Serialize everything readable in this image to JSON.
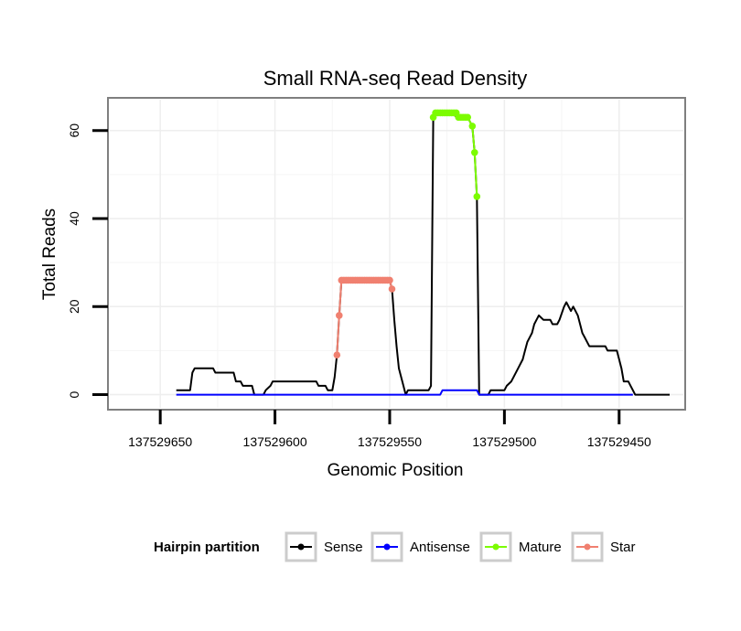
{
  "chart_data": {
    "type": "line",
    "title": "Small RNA-seq Read Density",
    "xlabel": "Genomic Position",
    "ylabel": "Total Reads",
    "xlim": [
      137529672,
      137529422
    ],
    "ylim": [
      -3,
      67
    ],
    "x_reversed": true,
    "grid": true,
    "x_ticks": [
      137529650,
      137529600,
      137529550,
      137529500,
      137529450
    ],
    "x_tick_labels": [
      "137529650",
      "137529600",
      "137529550",
      "137529500",
      "137529450"
    ],
    "y_ticks": [
      0,
      20,
      40,
      60
    ],
    "y_tick_labels": [
      "0",
      "20",
      "40",
      "60"
    ],
    "legend": {
      "title": "Hairpin partition",
      "position": "bottom",
      "entries": [
        "Sense",
        "Antisense",
        "Mature",
        "Star"
      ]
    },
    "series": [
      {
        "name": "Sense",
        "color": "#000000",
        "points": [
          [
            137529643,
            1
          ],
          [
            137529637,
            1
          ],
          [
            137529636,
            5
          ],
          [
            137529635,
            6
          ],
          [
            137529631,
            6
          ],
          [
            137529627,
            6
          ],
          [
            137529626,
            5
          ],
          [
            137529622,
            5
          ],
          [
            137529618,
            5
          ],
          [
            137529617,
            3
          ],
          [
            137529615,
            3
          ],
          [
            137529614,
            2
          ],
          [
            137529610,
            2
          ],
          [
            137529609,
            0
          ],
          [
            137529605,
            0
          ],
          [
            137529604,
            1
          ],
          [
            137529602,
            2
          ],
          [
            137529601,
            3
          ],
          [
            137529596,
            3
          ],
          [
            137529590,
            3
          ],
          [
            137529584,
            3
          ],
          [
            137529582,
            3
          ],
          [
            137529581,
            2
          ],
          [
            137529578,
            2
          ],
          [
            137529577,
            1
          ],
          [
            137529575,
            1
          ],
          [
            137529574,
            4
          ],
          [
            137529573,
            9
          ],
          [
            137529572,
            18
          ],
          [
            137529571,
            26
          ],
          [
            137529570,
            26
          ],
          [
            137529560,
            26
          ],
          [
            137529550,
            26
          ],
          [
            137529549,
            24
          ],
          [
            137529548,
            17
          ],
          [
            137529547,
            11
          ],
          [
            137529546,
            6
          ],
          [
            137529544,
            2
          ],
          [
            137529543,
            0
          ],
          [
            137529542,
            1
          ],
          [
            137529540,
            1
          ],
          [
            137529536,
            1
          ],
          [
            137529533,
            1
          ],
          [
            137529532,
            2
          ],
          [
            137529531,
            63
          ],
          [
            137529530,
            64
          ],
          [
            137529527,
            64
          ],
          [
            137529524,
            64
          ],
          [
            137529520,
            63
          ],
          [
            137529516,
            63
          ],
          [
            137529514,
            61
          ],
          [
            137529513,
            55
          ],
          [
            137529512,
            45
          ],
          [
            137529511,
            0
          ],
          [
            137529509,
            0
          ],
          [
            137529507,
            0
          ],
          [
            137529506,
            1
          ],
          [
            137529500,
            1
          ],
          [
            137529499,
            2
          ],
          [
            137529497,
            3
          ],
          [
            137529496,
            4
          ],
          [
            137529494,
            6
          ],
          [
            137529492,
            8
          ],
          [
            137529491,
            10
          ],
          [
            137529490,
            12
          ],
          [
            137529488,
            14
          ],
          [
            137529487,
            16
          ],
          [
            137529486,
            17
          ],
          [
            137529485,
            18
          ],
          [
            137529483,
            17
          ],
          [
            137529482,
            17
          ],
          [
            137529480,
            17
          ],
          [
            137529479,
            16
          ],
          [
            137529477,
            16
          ],
          [
            137529476,
            17
          ],
          [
            137529474,
            20
          ],
          [
            137529473,
            21
          ],
          [
            137529472,
            20
          ],
          [
            137529471,
            19
          ],
          [
            137529470,
            20
          ],
          [
            137529469,
            19
          ],
          [
            137529468,
            18
          ],
          [
            137529467,
            16
          ],
          [
            137529466,
            14
          ],
          [
            137529465,
            13
          ],
          [
            137529464,
            12
          ],
          [
            137529463,
            11
          ],
          [
            137529460,
            11
          ],
          [
            137529456,
            11
          ],
          [
            137529455,
            10
          ],
          [
            137529451,
            10
          ],
          [
            137529450,
            8
          ],
          [
            137529449,
            6
          ],
          [
            137529448,
            3
          ],
          [
            137529446,
            3
          ],
          [
            137529445,
            2
          ],
          [
            137529444,
            1
          ],
          [
            137529443,
            0
          ],
          [
            137529441,
            0
          ],
          [
            137529434,
            0
          ],
          [
            137529428,
            0
          ]
        ]
      },
      {
        "name": "Antisense",
        "color": "#0000ff",
        "points": [
          [
            137529643,
            0
          ],
          [
            137529620,
            0
          ],
          [
            137529600,
            0
          ],
          [
            137529580,
            0
          ],
          [
            137529560,
            0
          ],
          [
            137529540,
            0
          ],
          [
            137529528,
            0
          ],
          [
            137529527,
            1
          ],
          [
            137529520,
            1
          ],
          [
            137529512,
            1
          ],
          [
            137529511,
            0
          ],
          [
            137529500,
            0
          ],
          [
            137529480,
            0
          ],
          [
            137529460,
            0
          ],
          [
            137529444,
            0
          ]
        ]
      },
      {
        "name": "Mature",
        "color": "#7cfc00",
        "points": [
          [
            137529531,
            63
          ],
          [
            137529530,
            64
          ],
          [
            137529529,
            64
          ],
          [
            137529528,
            64
          ],
          [
            137529527,
            64
          ],
          [
            137529526,
            64
          ],
          [
            137529525,
            64
          ],
          [
            137529524,
            64
          ],
          [
            137529523,
            64
          ],
          [
            137529522,
            64
          ],
          [
            137529521,
            64
          ],
          [
            137529520,
            63
          ],
          [
            137529519,
            63
          ],
          [
            137529518,
            63
          ],
          [
            137529517,
            63
          ],
          [
            137529516,
            63
          ],
          [
            137529514,
            61
          ],
          [
            137529513,
            55
          ],
          [
            137529512,
            45
          ]
        ]
      },
      {
        "name": "Star",
        "color": "#f08070",
        "points": [
          [
            137529573,
            9
          ],
          [
            137529572,
            18
          ],
          [
            137529571,
            26
          ],
          [
            137529570,
            26
          ],
          [
            137529569,
            26
          ],
          [
            137529568,
            26
          ],
          [
            137529567,
            26
          ],
          [
            137529566,
            26
          ],
          [
            137529565,
            26
          ],
          [
            137529564,
            26
          ],
          [
            137529563,
            26
          ],
          [
            137529562,
            26
          ],
          [
            137529561,
            26
          ],
          [
            137529560,
            26
          ],
          [
            137529559,
            26
          ],
          [
            137529558,
            26
          ],
          [
            137529557,
            26
          ],
          [
            137529556,
            26
          ],
          [
            137529555,
            26
          ],
          [
            137529554,
            26
          ],
          [
            137529553,
            26
          ],
          [
            137529552,
            26
          ],
          [
            137529551,
            26
          ],
          [
            137529550,
            26
          ],
          [
            137529549,
            24
          ]
        ]
      }
    ]
  }
}
